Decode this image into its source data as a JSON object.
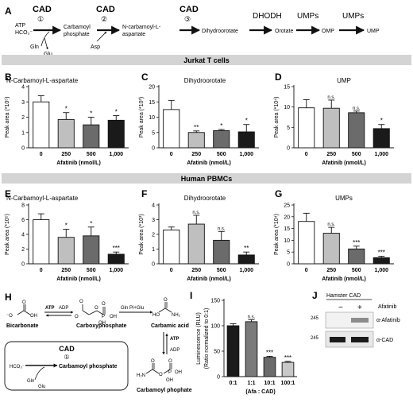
{
  "pathway": {
    "panel_label": "A",
    "inputs": [
      "ATP",
      "HCO₃⁻"
    ],
    "gln": "Gln",
    "glu": "Glu",
    "asp": "Asp",
    "cad1": "CAD",
    "cad1_step": "①",
    "cad2": "CAD",
    "cad2_step": "②",
    "cad3": "CAD",
    "cad3_step": "③",
    "carbamoyl_phosphate": [
      "Carbamoyl",
      "phosphate"
    ],
    "n_carbamoyl_aspartate": [
      "N-carbamoyl-L-",
      "aspartate"
    ],
    "dihydroorotate": "Dihydroorotate",
    "dhodh": "DHODH",
    "orotate": "Orotate",
    "umps1": "UMPs",
    "omp": "OMP",
    "umps2": "UMPs",
    "ump": "UMP"
  },
  "bands": {
    "jurkat": "Jurkat T cells",
    "pbmc": "Human PBMCs"
  },
  "chart_data": [
    {
      "id": "B",
      "type": "bar",
      "title": "N-Carbamoyl-L-aspartate",
      "ylabel": "Peak area (*10⁵)",
      "xlabel": "Afatinib (nmol/L)",
      "categories": [
        "0",
        "250",
        "500",
        "1,000"
      ],
      "values": [
        3.0,
        1.85,
        1.5,
        1.8
      ],
      "errors": [
        0.4,
        0.45,
        0.5,
        0.3
      ],
      "sig": [
        "",
        "*",
        "*",
        "*"
      ],
      "ylim": [
        0,
        4
      ],
      "yticks": [
        0,
        1,
        2,
        3,
        4
      ],
      "colors": [
        "#ffffff",
        "#bfbfbf",
        "#6b6b6b",
        "#1a1a1a"
      ]
    },
    {
      "id": "C",
      "type": "bar",
      "title": "Dihydroorotate",
      "ylabel": "Peak area (*10³)",
      "xlabel": "Afatinib (nmol/L)",
      "categories": [
        "0",
        "250",
        "500",
        "1,000"
      ],
      "values": [
        12.5,
        5.0,
        5.6,
        5.2
      ],
      "errors": [
        3.0,
        0.5,
        0.4,
        2.4
      ],
      "sig": [
        "",
        "**",
        "*",
        "*"
      ],
      "ylim": [
        0,
        20
      ],
      "yticks": [
        0,
        5,
        10,
        15,
        20
      ],
      "colors": [
        "#ffffff",
        "#bfbfbf",
        "#6b6b6b",
        "#1a1a1a"
      ]
    },
    {
      "id": "D",
      "type": "bar",
      "title": "UMP",
      "ylabel": "Peak area (*10⁴)",
      "xlabel": "Afatinib (nmol/L)",
      "categories": [
        "0",
        "250",
        "500",
        "1,000"
      ],
      "values": [
        9.8,
        9.7,
        8.6,
        4.7
      ],
      "errors": [
        2.0,
        2.0,
        0.4,
        1.0
      ],
      "sig": [
        "",
        "n.s.",
        "n.s.",
        "*"
      ],
      "ylim": [
        0,
        15
      ],
      "yticks": [
        0,
        5,
        10,
        15
      ],
      "colors": [
        "#ffffff",
        "#bfbfbf",
        "#6b6b6b",
        "#1a1a1a"
      ]
    },
    {
      "id": "E",
      "type": "bar",
      "title": "N-Carbamoyl-L-aspartate",
      "ylabel": "Peak area (*10⁵)",
      "xlabel": "Afatinib (nmol/L)",
      "categories": [
        "0",
        "250",
        "500",
        "1,000"
      ],
      "values": [
        6.0,
        3.6,
        3.8,
        1.3
      ],
      "errors": [
        0.8,
        1.1,
        1.2,
        0.3
      ],
      "sig": [
        "",
        "*",
        "*",
        "***"
      ],
      "ylim": [
        0,
        8
      ],
      "yticks": [
        0,
        2,
        4,
        6,
        8
      ],
      "colors": [
        "#ffffff",
        "#bfbfbf",
        "#6b6b6b",
        "#1a1a1a"
      ]
    },
    {
      "id": "F",
      "type": "bar",
      "title": "Dihydroorotate",
      "ylabel": "Peak area (*10³)",
      "xlabel": "Afatinib (nmol/L)",
      "categories": [
        "0",
        "250",
        "500",
        "1,000"
      ],
      "values": [
        2.3,
        2.7,
        1.6,
        0.6
      ],
      "errors": [
        0.2,
        0.6,
        0.6,
        0.2
      ],
      "sig": [
        "",
        "n.s.",
        "n.s.",
        "**"
      ],
      "ylim": [
        0,
        4
      ],
      "yticks": [
        0,
        1,
        2,
        3,
        4
      ],
      "colors": [
        "#ffffff",
        "#bfbfbf",
        "#6b6b6b",
        "#1a1a1a"
      ]
    },
    {
      "id": "G",
      "type": "bar",
      "title": "UMPs",
      "ylabel": "Peak area (*10⁴)",
      "xlabel": "Afatinib (nmol/L)",
      "categories": [
        "0",
        "250",
        "500",
        "1,000"
      ],
      "values": [
        18.0,
        13.0,
        6.3,
        2.6
      ],
      "errors": [
        3.5,
        2.5,
        1.2,
        0.6
      ],
      "sig": [
        "",
        "n.s.",
        "***",
        "***"
      ],
      "ylim": [
        0,
        25
      ],
      "yticks": [
        0,
        5,
        10,
        15,
        20,
        25
      ],
      "colors": [
        "#ffffff",
        "#bfbfbf",
        "#6b6b6b",
        "#1a1a1a"
      ]
    },
    {
      "id": "I",
      "type": "bar",
      "title": "",
      "ylabel": "Luminescence (RLU)",
      "ylabel2": "(Ratio normalized to 0:1)",
      "xlabel": "(Afa : CAD)",
      "categories": [
        "0:1",
        "1:1",
        "10:1",
        "100:1"
      ],
      "values": [
        100,
        108,
        38,
        28
      ],
      "errors": [
        4,
        4,
        2,
        2
      ],
      "sig": [
        "",
        "n.s.",
        "***",
        "***"
      ],
      "ylim": [
        0,
        150
      ],
      "yticks": [
        0,
        50,
        100,
        150
      ],
      "colors": [
        "#1a1a1a",
        "#7a7a7a",
        "#6b6b6b",
        "#c8c8c8"
      ]
    }
  ],
  "reaction": {
    "panel_label": "H",
    "bicarbonate": "Bicarbonate",
    "carboxyphosphate": "Carboxyphosphate",
    "carbamic_acid": "Carbamic acid",
    "carbamoyl_phosphate": "Carbamoyl phophate",
    "atp1": "ATP",
    "adp1": "ADP",
    "gln_pi_glu": "Gln  Pi+Glu",
    "atp2": "ATP",
    "adp2": "ADP",
    "box_cad": "CAD",
    "box_step": "①",
    "box_hco3": "HCO₃⁻",
    "box_product": "Carbamoyl phosphate",
    "box_gln": "Gln",
    "box_glu": "Glu"
  },
  "blot": {
    "panel_label": "J",
    "header": "Hamster CAD",
    "minus": "−",
    "plus": "+",
    "treatment": "Afatinib",
    "marker1": "245",
    "marker2": "245",
    "label1": "α-Afatinib",
    "label2": "α-CAD"
  }
}
